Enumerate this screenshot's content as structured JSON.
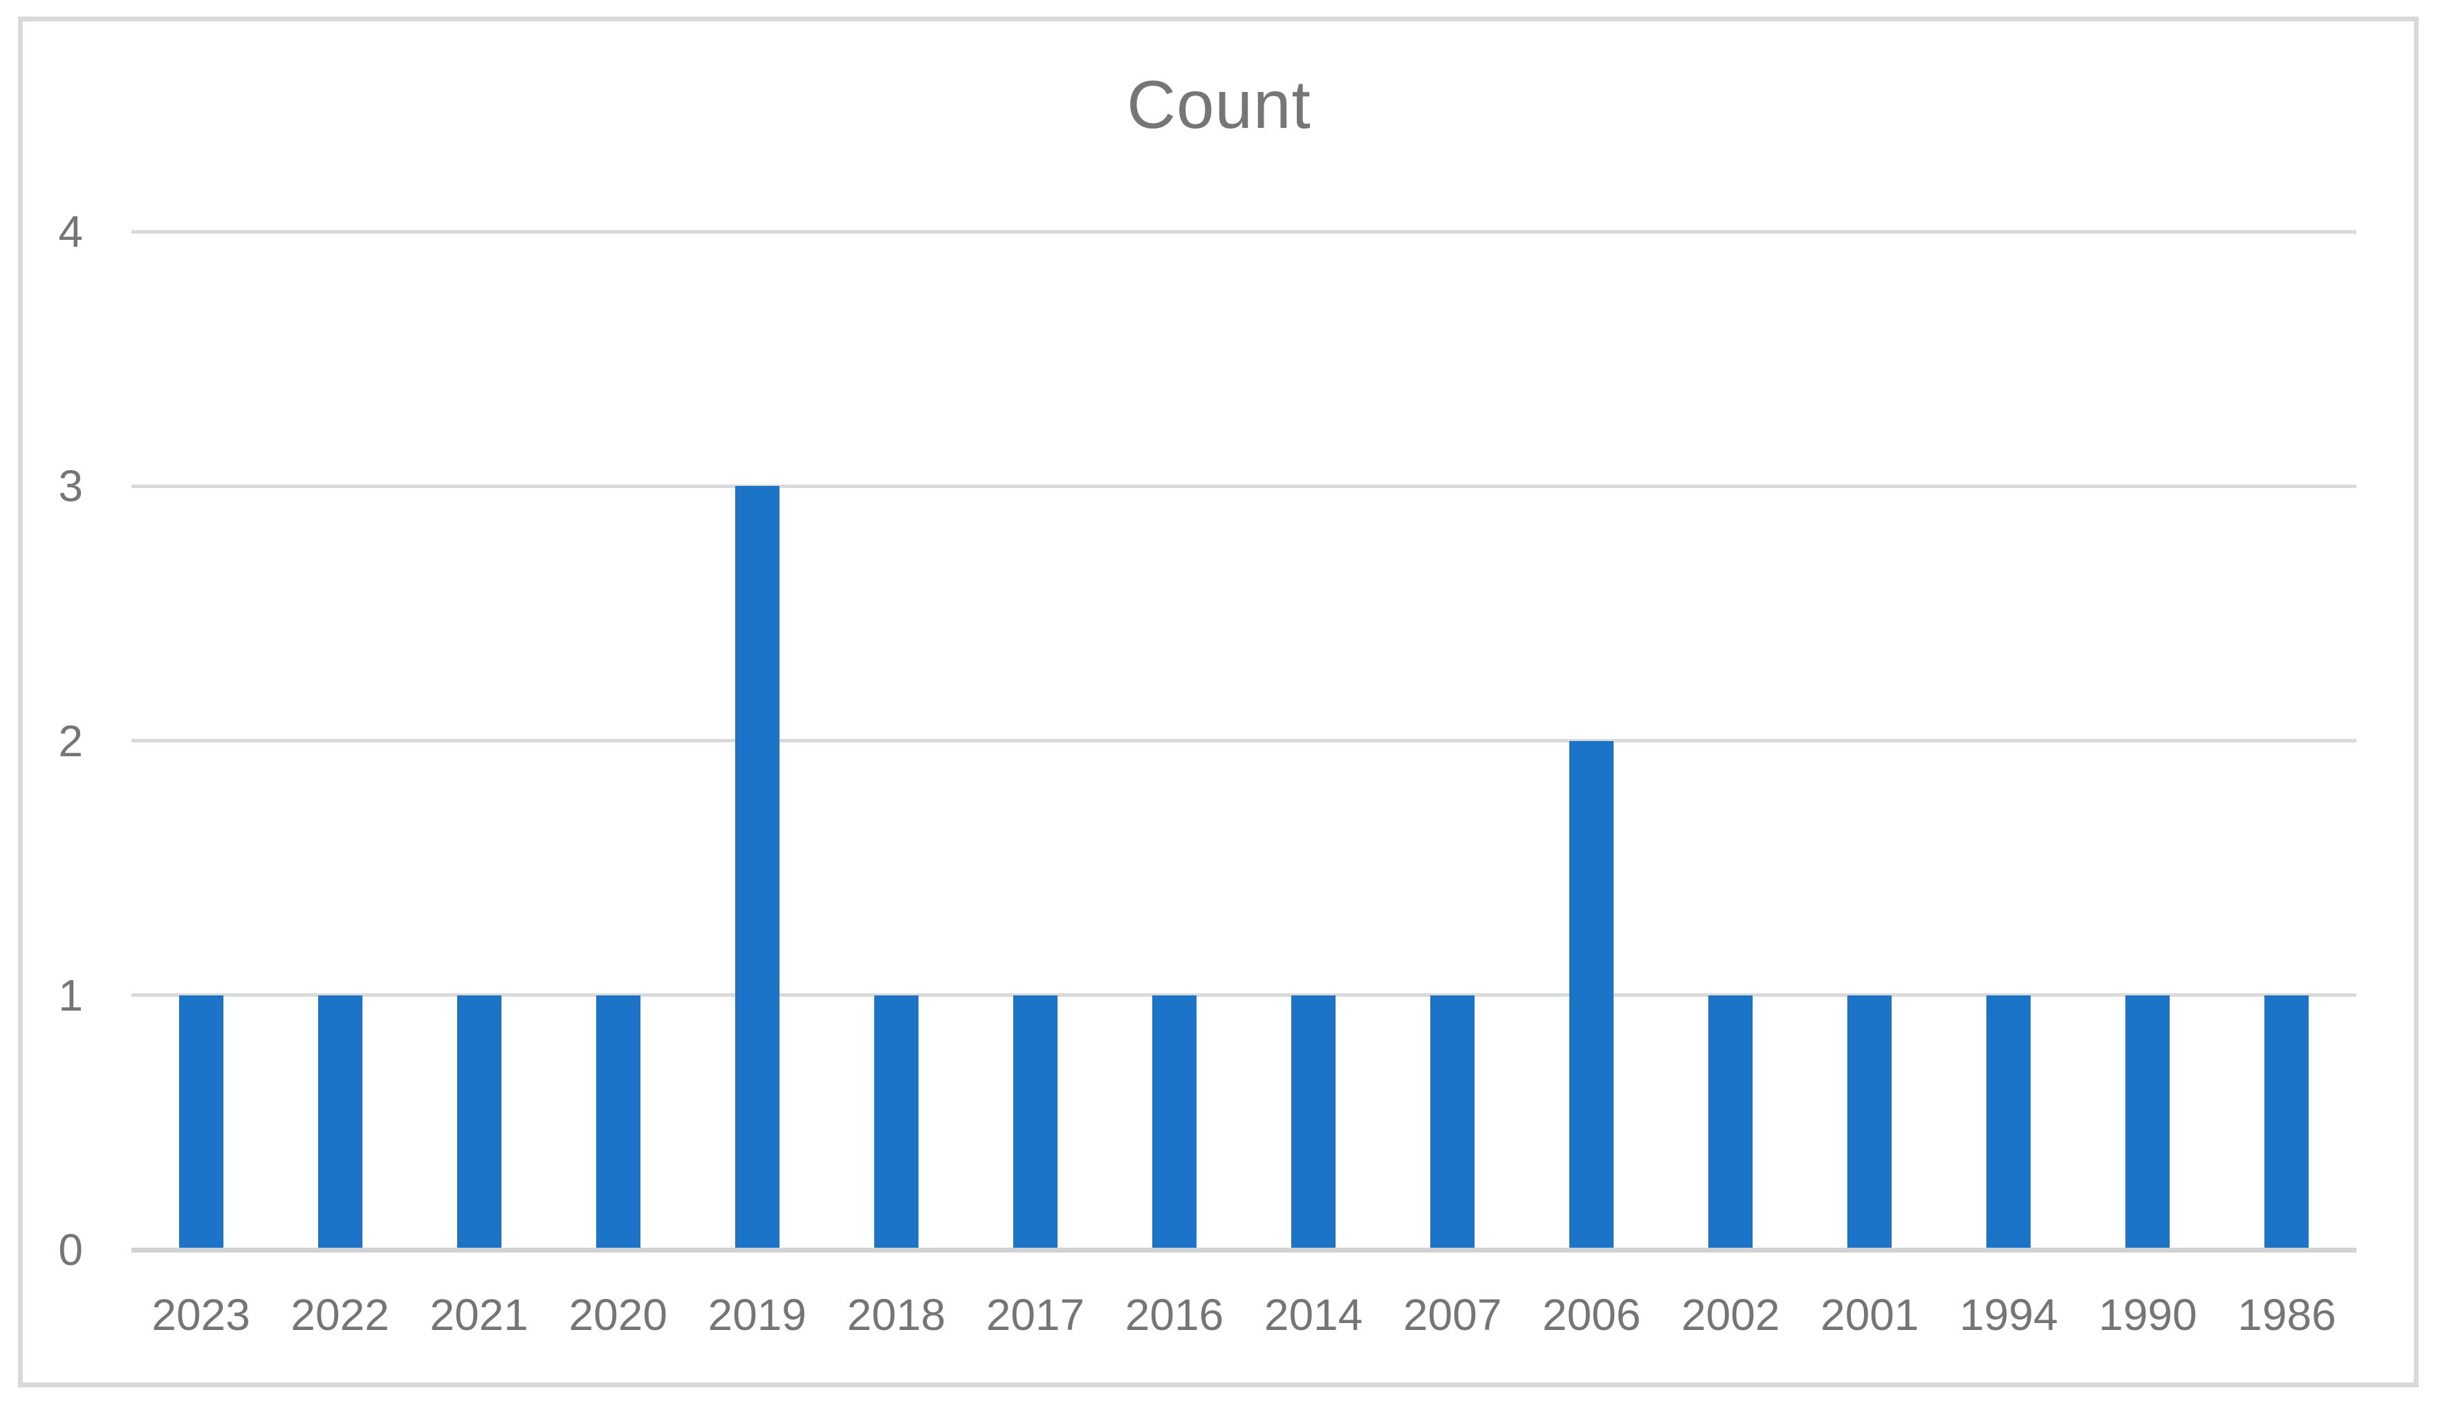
{
  "chart_data": {
    "type": "bar",
    "title": "Count",
    "categories": [
      "2023",
      "2022",
      "2021",
      "2020",
      "2019",
      "2018",
      "2017",
      "2016",
      "2014",
      "2007",
      "2006",
      "2002",
      "2001",
      "1994",
      "1990",
      "1986"
    ],
    "values": [
      1,
      1,
      1,
      1,
      3,
      1,
      1,
      1,
      1,
      1,
      2,
      1,
      1,
      1,
      1,
      1
    ],
    "xlabel": "",
    "ylabel": "",
    "ylim": [
      0,
      4
    ],
    "yticks": [
      0,
      1,
      2,
      3,
      4
    ],
    "grid": "horizontal",
    "legend": "none",
    "colors": {
      "bar": "#1B74C8",
      "gridline": "#D9D9D9",
      "axis_line": "#D2D2D2",
      "text": "#757575",
      "title_text": "#767676",
      "frame_border": "#D9D9D9",
      "background": "#FFFFFF"
    }
  }
}
